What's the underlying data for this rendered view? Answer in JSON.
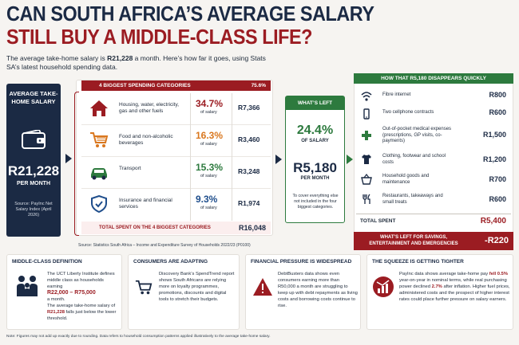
{
  "header": {
    "title_line1": "CAN SOUTH AFRICA’S AVERAGE SALARY",
    "title_line2": "STILL BUY A MIDDLE-CLASS LIFE?",
    "subtitle_part1": "The average take-home salary is ",
    "subtitle_amount": "R21,228",
    "subtitle_part2": " a month. Here’s how far it goes, using Stats SA’s latest household spending data."
  },
  "salary": {
    "label": "AVERAGE TAKE-HOME SALARY",
    "amount": "R21,228",
    "per": "PER MONTH",
    "source": "Source: PayInc Net Salary Index (April 2026)"
  },
  "categories": {
    "header": "4 BIGGEST SPENDING CATEGORIES",
    "header_pct": "75.6%",
    "of_salary": "of salary",
    "items": [
      {
        "name": "Housing, water, electricity, gas and other fuels",
        "pct": "34.7%",
        "amount": "R7,366",
        "icon": "house-icon",
        "color": "#9b1c22"
      },
      {
        "name": "Food and non-alcoholic beverages",
        "pct": "16.3%",
        "amount": "R3,460",
        "icon": "cart-icon",
        "color": "#d9771e"
      },
      {
        "name": "Transport",
        "pct": "15.3%",
        "amount": "R3,248",
        "icon": "car-icon",
        "color": "#2d7a3e"
      },
      {
        "name": "Insurance and financial services",
        "pct": "9.3%",
        "amount": "R1,974",
        "icon": "shield-icon",
        "color": "#1f4e8c"
      }
    ],
    "total_label": "TOTAL SPENT ON THE 4 BIGGEST CATEGORIES",
    "total_value": "R16,048"
  },
  "whats_left": {
    "header": "WHAT’S LEFT",
    "pct": "24.4%",
    "of_salary": "OF SALARY",
    "amount": "R5,180",
    "per": "PER MONTH",
    "note": "To cover everything else not included in the four biggest categories."
  },
  "disappears": {
    "header": "HOW THAT R5,180 DISAPPEARS QUICKLY",
    "items": [
      {
        "name": "Fibre internet",
        "value": "R800",
        "icon": "wifi-icon"
      },
      {
        "name": "Two cellphone contracts",
        "value": "R600",
        "icon": "phone-icon"
      },
      {
        "name": "Out-of-pocket medical expenses (prescriptions, GP visits, co-payments)",
        "value": "R1,500",
        "icon": "medical-cross-icon"
      },
      {
        "name": "Clothing, footwear and school costs",
        "value": "R1,200",
        "icon": "shirt-icon"
      },
      {
        "name": "Household goods and maintenance",
        "value": "R700",
        "icon": "basket-icon"
      },
      {
        "name": "Restaurants, takeaways and small treats",
        "value": "R600",
        "icon": "cutlery-icon"
      }
    ],
    "total_label": "TOTAL SPENT",
    "total_value": "R5,400",
    "left_label": "WHAT’S LEFT FOR SAVINGS, ENTERTAINMENT AND EMERGENCIES",
    "left_value": "-R220"
  },
  "source": "Source: Statistics South Africa – Income and Expenditure Survey of Households 2022/23 (P0100)",
  "cards": {
    "middle_class": {
      "title": "MIDDLE-CLASS DEFINITION",
      "text1": "The UCT Liberty Institute defines middle class as households earning",
      "range": "R22,000 – R75,000",
      "text2": "a month.",
      "text3": "The average take-home salary of",
      "amount": "R21,228",
      "text4": "falls just below the lower threshold."
    },
    "consumers": {
      "title": "CONSUMERS ARE ADAPTING",
      "text": "Discovery Bank’s SpendTrend report shows South Africans are relying more on loyalty programmes, promotions, discounts and digital tools to stretch their budgets."
    },
    "pressure": {
      "title": "FINANCIAL PRESSURE IS WIDESPREAD",
      "text": "DebtBusters data shows even consumers earning more than R50,000 a month are struggling to keep up with debt repayments as living costs and borrowing costs continue to rise."
    },
    "squeeze": {
      "title": "THE SQUEEZE IS GETTING TIGHTER",
      "text1": "PayInc data shows average take-home pay ",
      "fell": "fell 0.5%",
      "text2": " year-on-year in nominal terms, while real purchasing power declined ",
      "declined": "2.7%",
      "text3": " after inflation. Higher fuel prices, administered costs and the prospect of higher interest rates could place further pressure on salary earners."
    }
  },
  "footnote": "Note: Figures may not add up exactly due to rounding. Data refers to household consumption patterns applied illustratively to the average take-home salary.",
  "colors": {
    "navy": "#1b2a44",
    "red": "#9b1c22",
    "green": "#2d7a3e",
    "orange": "#d9771e",
    "blue": "#1f4e8c"
  }
}
